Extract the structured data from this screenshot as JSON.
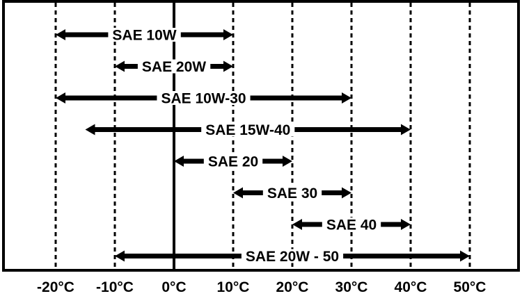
{
  "chart_data": {
    "type": "range",
    "title": "",
    "xlabel": "",
    "ylabel": "",
    "x_unit": "°C",
    "xlim": [
      -20,
      50
    ],
    "x_ticks": [
      -20,
      -10,
      0,
      10,
      20,
      30,
      40,
      50
    ],
    "tick_labels": [
      "-20°C",
      "-10°C",
      "0°C",
      "10°C",
      "20°C",
      "30°C",
      "40°C",
      "50°C"
    ],
    "grid": "vertical dashed at ticks, solid at 0°C",
    "ranges": [
      {
        "label": "SAE 10W",
        "x_start": -20,
        "x_end": 10
      },
      {
        "label": "SAE 20W",
        "x_start": -10,
        "x_end": 10
      },
      {
        "label": "SAE 10W-30",
        "x_start": -20,
        "x_end": 30
      },
      {
        "label": "SAE 15W-40",
        "x_start": -15,
        "x_end": 40
      },
      {
        "label": "SAE 20",
        "x_start": 0,
        "x_end": 20
      },
      {
        "label": "SAE 30",
        "x_start": 10,
        "x_end": 30
      },
      {
        "label": "SAE 40",
        "x_start": 20,
        "x_end": 40
      },
      {
        "label": "SAE 20W - 50",
        "x_start": -10,
        "x_end": 50
      }
    ],
    "colors": {
      "ink": "#000000",
      "background": "#ffffff"
    }
  }
}
